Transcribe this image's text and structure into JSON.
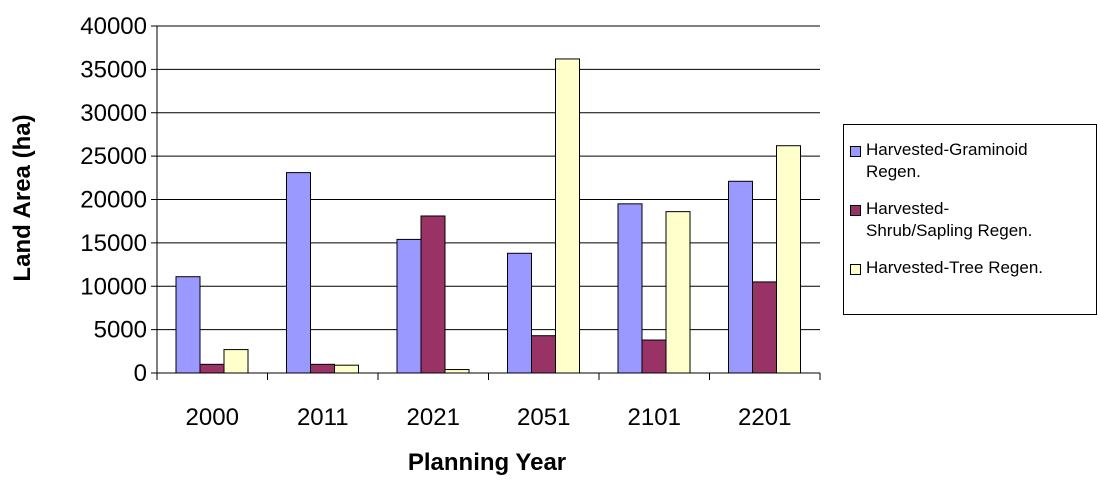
{
  "chart_data": {
    "type": "bar",
    "title": "",
    "xlabel": "Planning Year",
    "ylabel": "Land Area (ha)",
    "categories": [
      "2000",
      "2011",
      "2021",
      "2051",
      "2101",
      "2201"
    ],
    "ylim": [
      0,
      40000
    ],
    "yticks": [
      "0",
      "5000",
      "10000",
      "15000",
      "20000",
      "25000",
      "30000",
      "35000",
      "40000"
    ],
    "grid": true,
    "legend_position": "right",
    "series": [
      {
        "name": "Harvested-Graminoid Regen.",
        "color": "#9999ff",
        "values": [
          11100,
          23100,
          15400,
          13800,
          19500,
          22100
        ]
      },
      {
        "name": "Harvested-Shrub/Sapling Regen.",
        "color": "#993366",
        "values": [
          1000,
          1000,
          18100,
          4300,
          3800,
          10500
        ]
      },
      {
        "name": "Harvested-Tree Regen.",
        "color": "#ffffcc",
        "values": [
          2700,
          900,
          400,
          36200,
          18600,
          26200
        ]
      }
    ]
  },
  "legend": {
    "items": [
      {
        "lines": [
          "Harvested-Graminoid",
          "Regen."
        ]
      },
      {
        "lines": [
          "Harvested-",
          "Shrub/Sapling Regen."
        ]
      },
      {
        "lines": [
          "Harvested-Tree Regen."
        ]
      }
    ]
  }
}
